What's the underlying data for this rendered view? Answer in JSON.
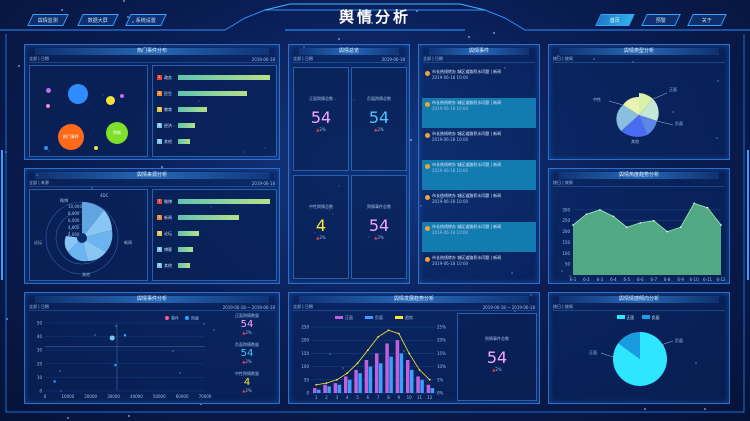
{
  "header": {
    "title": "舆情分析"
  },
  "nav_left": [
    "舆情监测",
    "数据大屏",
    "系统设置"
  ],
  "nav_right": [
    "首页",
    "预警",
    "关于"
  ],
  "p1": {
    "title": "热门事件分布",
    "filter": "全部 | 日期",
    "date": "2019-06-18"
  },
  "p1_bubbles": [
    {
      "label": "",
      "color": "#2f8cff"
    },
    {
      "label": "",
      "color": "#f2e33a"
    },
    {
      "label": "热门事件",
      "color": "#ff6a1a"
    },
    {
      "label": "舆情",
      "color": "#7ee02a"
    }
  ],
  "p1_rank": [
    {
      "n": "1",
      "name": "政务",
      "v": 0.96,
      "c": "#e5433a"
    },
    {
      "n": "2",
      "name": "民生",
      "v": 0.72,
      "c": "#f08a2e"
    },
    {
      "n": "3",
      "name": "教育",
      "v": 0.3,
      "c": "#e6c64a"
    },
    {
      "n": "4",
      "name": "经济",
      "v": 0.18,
      "c": "#7dc2e6"
    },
    {
      "n": "5",
      "name": "其他",
      "v": 0.12,
      "c": "#7dc2e6"
    }
  ],
  "p2": {
    "title": "舆情来源分析",
    "filter": "全部 | 来源",
    "date": "2019-06-18"
  },
  "p2_rank": [
    {
      "n": "1",
      "name": "微博",
      "v": 0.96,
      "c": "#e5433a"
    },
    {
      "n": "2",
      "name": "新闻",
      "v": 0.64,
      "c": "#f08a2e"
    },
    {
      "n": "3",
      "name": "论坛",
      "v": 0.22,
      "c": "#e6c64a"
    },
    {
      "n": "4",
      "name": "博客",
      "v": 0.16,
      "c": "#7dc2e6"
    },
    {
      "n": "5",
      "name": "其他",
      "v": 0.12,
      "c": "#7dc2e6"
    }
  ],
  "p2_radial": {
    "center_label": "4DC",
    "ticks": [
      "10,000",
      "8,000",
      "6,000",
      "4,000",
      "2,000"
    ],
    "labels": [
      "微博",
      "新闻",
      "论坛",
      "其他"
    ]
  },
  "p3": {
    "title": "舆情总览",
    "filter": "全部 | 日期",
    "date": "2019-06-18"
  },
  "p3_stats": [
    {
      "label": "正面舆情总数",
      "value": "54",
      "pct": "2%",
      "color": "#f7a6ff"
    },
    {
      "label": "负面舆情总数",
      "value": "54",
      "pct": "2%",
      "color": "#4ac6ff"
    },
    {
      "label": "中性舆情总数",
      "value": "4",
      "pct": "2%",
      "color": "#ffe53a"
    },
    {
      "label": "舆情事件总数",
      "value": "54",
      "pct": "2%",
      "color": "#f7a6ff"
    }
  ],
  "p4": {
    "title": "舆情事件",
    "filter": "全部 | 日期"
  },
  "p4_news": [
    {
      "t": "市长热线转办 城区道路积水问题 | 新闻",
      "d": "2019-06-18 10:00"
    },
    {
      "t": "市长热线转办 城区道路积水问题 | 新闻",
      "d": "2019-06-18 10:00"
    },
    {
      "t": "市长热线转办 城区道路积水问题 | 新闻",
      "d": "2019-06-18 10:00"
    },
    {
      "t": "市长热线转办 城区道路积水问题 | 新闻",
      "d": "2019-06-18 10:00"
    },
    {
      "t": "市长热线转办 城区道路积水问题 | 新闻",
      "d": "2019-06-18 10:00"
    },
    {
      "t": "市长热线转办 城区道路积水问题 | 新闻",
      "d": "2019-06-18 10:00"
    },
    {
      "t": "市长热线转办 城区道路积水问题 | 新闻",
      "d": "2019-06-18 10:00"
    }
  ],
  "p5": {
    "title": "舆情类型分析",
    "filter": "按日 | 按周"
  },
  "p5_rose": {
    "labels": [
      "正面",
      "负面",
      "中性",
      "其他",
      "敏感"
    ]
  },
  "p6": {
    "title": "舆情热度趋势分析",
    "filter": "按日 | 按周"
  },
  "chart_data": [
    {
      "type": "area",
      "id": "p6",
      "x": [
        "6-1",
        "6-2",
        "6-3",
        "6-4",
        "6-5",
        "6-6",
        "6-7",
        "6-8",
        "6-9",
        "6-10",
        "6-11",
        "6-12"
      ],
      "values": [
        230,
        280,
        300,
        270,
        220,
        240,
        250,
        200,
        220,
        330,
        310,
        230
      ],
      "yticks": [
        "50",
        "100",
        "150",
        "200",
        "250",
        "300"
      ],
      "ylim": [
        0,
        350
      ]
    },
    {
      "type": "bar",
      "id": "p8",
      "legend": [
        "正面",
        "负面",
        "趋势"
      ],
      "x": [
        "1",
        "2",
        "3",
        "4",
        "5",
        "6",
        "7",
        "8",
        "9",
        "10",
        "11",
        "12"
      ],
      "series": [
        {
          "name": "正面",
          "values": [
            3,
            5,
            6,
            10,
            14,
            20,
            24,
            30,
            32,
            20,
            10,
            5
          ],
          "color": "#c060e0"
        },
        {
          "name": "负面",
          "values": [
            2,
            4,
            5,
            8,
            12,
            16,
            18,
            22,
            24,
            14,
            8,
            3
          ],
          "color": "#3aa0ff"
        }
      ],
      "line": [
        5,
        6,
        8,
        12,
        18,
        26,
        34,
        38,
        36,
        24,
        14,
        8
      ],
      "yticks_left": [
        "0",
        "50",
        "100",
        "150",
        "200",
        "250"
      ],
      "yticks_right": [
        "0%",
        "5%",
        "10%",
        "15%",
        "20%",
        "25%"
      ]
    },
    {
      "type": "scatter",
      "id": "p7",
      "points": [
        [
          0.42,
          0.22
        ],
        [
          0.5,
          0.18
        ],
        [
          0.06,
          0.86
        ],
        [
          0.44,
          0.62
        ]
      ],
      "xticks": [
        "0",
        "10000",
        "20000",
        "30000",
        "40000",
        "50000",
        "60000",
        "70000"
      ],
      "yticks": [
        "0",
        "10",
        "20",
        "30",
        "40",
        "50"
      ],
      "legend": [
        "事件",
        "热度"
      ]
    },
    {
      "type": "pie",
      "id": "p9",
      "legend": [
        "正面",
        "负面"
      ],
      "values": [
        85,
        15
      ],
      "labels": [
        "正面",
        "负面"
      ]
    }
  ],
  "p7": {
    "title": "舆情事件分析",
    "filter": "全部 | 日期",
    "date": "2019-06-18 ~ 2019-06-18"
  },
  "p7_side": [
    {
      "label": "正面舆情数量",
      "value": "54",
      "pct": "2%",
      "color": "#f7a6ff"
    },
    {
      "label": "负面舆情数量",
      "value": "54",
      "pct": "2%",
      "color": "#4ac6ff"
    },
    {
      "label": "中性舆情数量",
      "value": "4",
      "pct": "2%",
      "color": "#ffe53a"
    }
  ],
  "p8": {
    "title": "舆情发展趋势分析",
    "filter": "全部 | 日期",
    "date": "2019-06-18 ~ 2019-06-18"
  },
  "p8_side": {
    "label": "舆情事件总数",
    "value": "54",
    "pct": "2%"
  },
  "p9": {
    "title": "舆情情感倾向分析",
    "filter": "按日 | 按周"
  }
}
